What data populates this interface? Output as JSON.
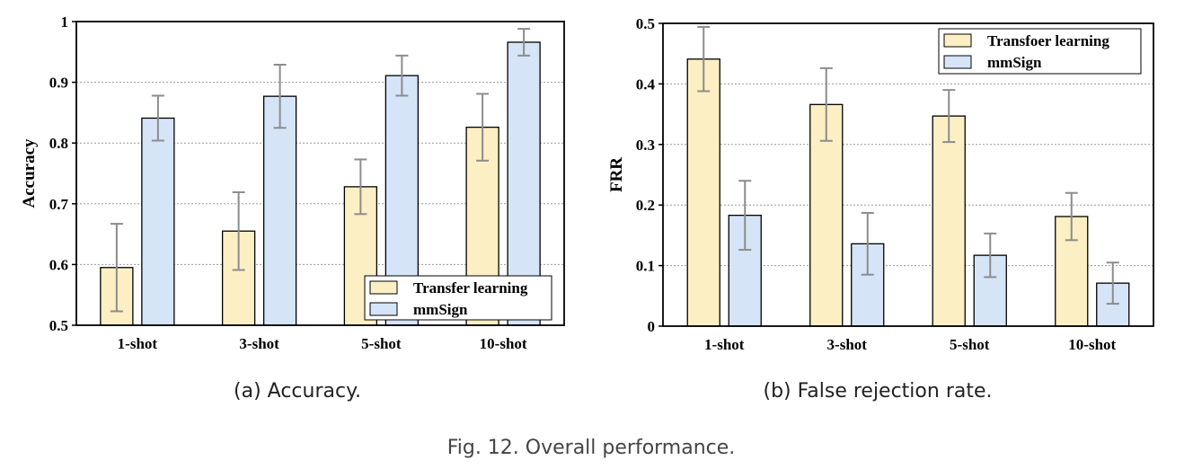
{
  "figure_caption": "Fig. 12.  Overall performance.",
  "colors": {
    "series_a": "#fdefc4",
    "series_b": "#d6e4f7",
    "error_bar": "#8c8c8c",
    "grid": "#9a9a9a"
  },
  "chart_data": [
    {
      "type": "bar",
      "caption": "(a) Accuracy.",
      "ylabel": "Accuracy",
      "xlabel": "",
      "categories": [
        "1-shot",
        "3-shot",
        "5-shot",
        "10-shot"
      ],
      "ylim": [
        0.5,
        1.0
      ],
      "yticks": [
        0.5,
        0.6,
        0.7,
        0.8,
        0.9,
        1.0
      ],
      "ytick_labels": [
        "0.5",
        "0.6",
        "0.7",
        "0.8",
        "0.9",
        "1"
      ],
      "grid": "horizontal dotted",
      "legend_position": "bottom-right",
      "series": [
        {
          "name": "Transfer learning",
          "values": [
            0.595,
            0.655,
            0.728,
            0.826
          ],
          "errors": [
            0.072,
            0.064,
            0.045,
            0.055
          ]
        },
        {
          "name": "mmSign",
          "values": [
            0.841,
            0.877,
            0.911,
            0.966
          ],
          "errors": [
            0.037,
            0.052,
            0.033,
            0.022
          ]
        }
      ]
    },
    {
      "type": "bar",
      "caption": "(b) False rejection rate.",
      "ylabel": "FRR",
      "xlabel": "",
      "categories": [
        "1-shot",
        "3-shot",
        "5-shot",
        "10-shot"
      ],
      "ylim": [
        0,
        0.5
      ],
      "yticks": [
        0,
        0.1,
        0.2,
        0.3,
        0.4,
        0.5
      ],
      "ytick_labels": [
        "0",
        "0.1",
        "0.2",
        "0.3",
        "0.4",
        "0.5"
      ],
      "grid": "horizontal dotted",
      "legend_position": "top-right",
      "series": [
        {
          "name": "Transfoer learning",
          "values": [
            0.441,
            0.366,
            0.347,
            0.181
          ],
          "errors": [
            0.053,
            0.06,
            0.043,
            0.039
          ]
        },
        {
          "name": "mmSign",
          "values": [
            0.183,
            0.136,
            0.117,
            0.071
          ],
          "errors": [
            0.057,
            0.051,
            0.036,
            0.034
          ]
        }
      ]
    }
  ]
}
